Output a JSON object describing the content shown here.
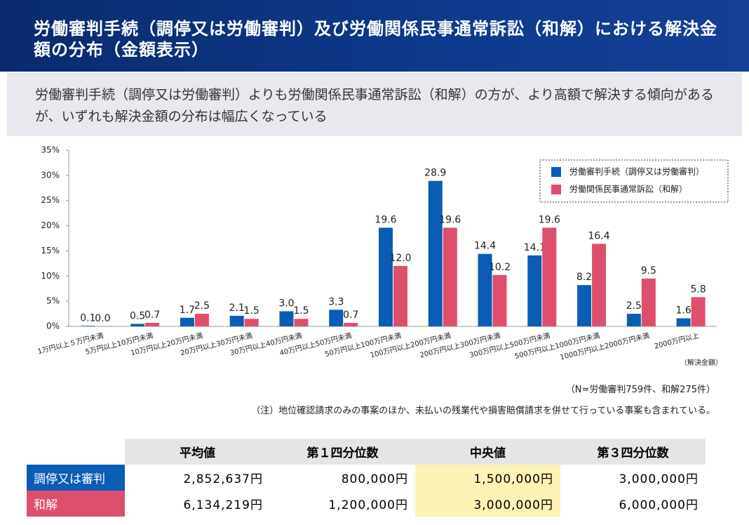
{
  "header": {
    "title": "労働審判手続（調停又は労働審判）及び労働関係民事通常訴訟（和解）における解決金額の分布（金額表示）"
  },
  "summary": "労働審判手続（調停又は労働審判）よりも労働関係民事通常訴訟（和解）の方が、より高額で解決する傾向があるが、いずれも解決金額の分布は幅広くなっている",
  "chart_data": {
    "type": "bar",
    "categories": [
      "1万円以上５万円未満",
      "5万円以上10万円未満",
      "10万円以上20万円未満",
      "20万円以上30万円未満",
      "30万円以上40万円未満",
      "40万円以上50万円未満",
      "50万円以上100万円未満",
      "100万円以上200万円未満",
      "200万円以上300万円未満",
      "300万円以上500万円未満",
      "500万円以上1000万円未満",
      "1000万円以上2000万円未満",
      "2000万円以上"
    ],
    "series": [
      {
        "name": "労働審判手続（調停又は労働審判）",
        "color": "#0b5cb5",
        "values": [
          0.1,
          0.5,
          1.7,
          2.1,
          3.0,
          3.3,
          19.6,
          28.9,
          14.4,
          14.1,
          8.2,
          2.5,
          1.6
        ],
        "value_labels": [
          "0.1",
          "0.5",
          "1.7",
          "2.1",
          "3.0",
          "3.3",
          "19.6",
          "28.9",
          "14.4",
          "14.1",
          "8.2",
          "2.5",
          "1.6"
        ]
      },
      {
        "name": "労働関係民事通常訴訟（和解）",
        "color": "#de4f6e",
        "values": [
          0.0,
          0.7,
          2.5,
          1.5,
          1.5,
          0.7,
          12.0,
          19.6,
          10.2,
          19.6,
          16.4,
          9.5,
          5.8
        ],
        "value_labels": [
          "0.0",
          "0.7",
          "2.5",
          "1.5",
          "1.5",
          "0.7",
          "12.0",
          "19.6",
          "10.2",
          "19.6",
          "16.4",
          "9.5",
          "5.8"
        ]
      }
    ],
    "x_label": "（解決金額）",
    "ylim": [
      0,
      35
    ],
    "yticks": [
      {
        "value": 0,
        "label": "0%"
      },
      {
        "value": 5,
        "label": "5%"
      },
      {
        "value": 10,
        "label": "10%"
      },
      {
        "value": 15,
        "label": "15%"
      },
      {
        "value": 20,
        "label": "20%"
      },
      {
        "value": 25,
        "label": "25%"
      },
      {
        "value": 30,
        "label": "30%"
      },
      {
        "value": 35,
        "label": "35%"
      }
    ],
    "grid": false,
    "legend": "upper-right"
  },
  "notes": [
    "（N=労働審判759件、和解275件）",
    "（注）地位確認請求のみの事案のほか、未払いの残業代や損害賠償請求を併せて行っている事案も含まれている。"
  ],
  "table": {
    "columns": [
      "平均値",
      "第１四分位数",
      "中央値",
      "第３四分位数"
    ],
    "rows": [
      {
        "label": "調停又は審判",
        "cells": [
          "2,852,637円",
          "800,000円",
          "1,500,000円",
          "3,000,000円"
        ]
      },
      {
        "label": "和解",
        "cells": [
          "6,134,219円",
          "1,200,000円",
          "3,000,000円",
          "6,000,000円"
        ]
      }
    ]
  }
}
